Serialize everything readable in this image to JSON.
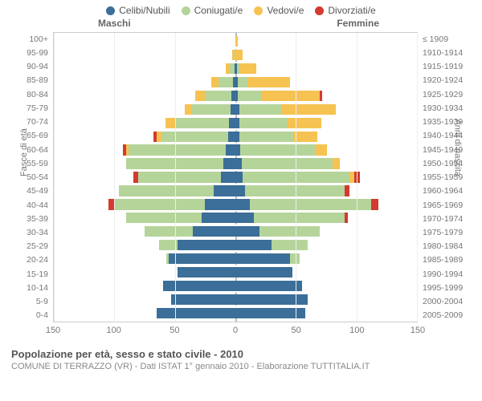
{
  "legend": [
    {
      "label": "Celibi/Nubili",
      "color": "#3b6e98"
    },
    {
      "label": "Coniugati/e",
      "color": "#b5d49a"
    },
    {
      "label": "Vedovi/e",
      "color": "#f6c251"
    },
    {
      "label": "Divorziati/e",
      "color": "#d43a2f"
    }
  ],
  "gender_labels": {
    "male": "Maschi",
    "female": "Femmine"
  },
  "axis_titles": {
    "left": "Fasce di età",
    "right": "Anni di nascita"
  },
  "xaxis": {
    "min": -150,
    "max": 150,
    "ticks": [
      -150,
      -100,
      -50,
      0,
      50,
      100,
      150
    ]
  },
  "colors": {
    "celibi": "#3b6e98",
    "coniugati": "#b5d49a",
    "vedovi": "#f6c251",
    "divorziati": "#d43a2f",
    "grid": "#eeeeee",
    "zero_dash": "#bbbbbb",
    "plot_border": "#cccccc",
    "tick_text": "#777777"
  },
  "title": "Popolazione per età, sesso e stato civile - 2010",
  "subtitle": "COMUNE DI TERRAZZO (VR) - Dati ISTAT 1° gennaio 2010 - Elaborazione TUTTITALIA.IT",
  "rows": [
    {
      "age": "0-4",
      "birth": "2005-2009",
      "m": {
        "cel": 65,
        "con": 0,
        "ved": 0,
        "div": 0
      },
      "f": {
        "cel": 58,
        "con": 0,
        "ved": 0,
        "div": 0
      }
    },
    {
      "age": "5-9",
      "birth": "2000-2004",
      "m": {
        "cel": 53,
        "con": 0,
        "ved": 0,
        "div": 0
      },
      "f": {
        "cel": 60,
        "con": 0,
        "ved": 0,
        "div": 0
      }
    },
    {
      "age": "10-14",
      "birth": "1995-1999",
      "m": {
        "cel": 60,
        "con": 0,
        "ved": 0,
        "div": 0
      },
      "f": {
        "cel": 55,
        "con": 0,
        "ved": 0,
        "div": 0
      }
    },
    {
      "age": "15-19",
      "birth": "1990-1994",
      "m": {
        "cel": 48,
        "con": 0,
        "ved": 0,
        "div": 0
      },
      "f": {
        "cel": 47,
        "con": 0,
        "ved": 0,
        "div": 0
      }
    },
    {
      "age": "20-24",
      "birth": "1985-1989",
      "m": {
        "cel": 55,
        "con": 2,
        "ved": 0,
        "div": 0
      },
      "f": {
        "cel": 45,
        "con": 8,
        "ved": 0,
        "div": 0
      }
    },
    {
      "age": "25-29",
      "birth": "1980-1984",
      "m": {
        "cel": 48,
        "con": 15,
        "ved": 0,
        "div": 0
      },
      "f": {
        "cel": 30,
        "con": 30,
        "ved": 0,
        "div": 0
      }
    },
    {
      "age": "30-34",
      "birth": "1975-1979",
      "m": {
        "cel": 35,
        "con": 40,
        "ved": 0,
        "div": 0
      },
      "f": {
        "cel": 20,
        "con": 50,
        "ved": 0,
        "div": 0
      }
    },
    {
      "age": "35-39",
      "birth": "1970-1974",
      "m": {
        "cel": 28,
        "con": 62,
        "ved": 0,
        "div": 0
      },
      "f": {
        "cel": 15,
        "con": 75,
        "ved": 0,
        "div": 3
      }
    },
    {
      "age": "40-44",
      "birth": "1965-1969",
      "m": {
        "cel": 25,
        "con": 75,
        "ved": 0,
        "div": 5
      },
      "f": {
        "cel": 12,
        "con": 100,
        "ved": 0,
        "div": 6
      }
    },
    {
      "age": "45-49",
      "birth": "1960-1964",
      "m": {
        "cel": 18,
        "con": 78,
        "ved": 0,
        "div": 0
      },
      "f": {
        "cel": 8,
        "con": 82,
        "ved": 0,
        "div": 4
      }
    },
    {
      "age": "50-54",
      "birth": "1955-1959",
      "m": {
        "cel": 12,
        "con": 68,
        "ved": 0,
        "div": 4
      },
      "f": {
        "cel": 6,
        "con": 88,
        "ved": 4,
        "div": 5
      }
    },
    {
      "age": "55-59",
      "birth": "1950-1954",
      "m": {
        "cel": 10,
        "con": 80,
        "ved": 0,
        "div": 0
      },
      "f": {
        "cel": 5,
        "con": 75,
        "ved": 6,
        "div": 0
      }
    },
    {
      "age": "60-64",
      "birth": "1945-1949",
      "m": {
        "cel": 8,
        "con": 80,
        "ved": 2,
        "div": 3
      },
      "f": {
        "cel": 4,
        "con": 62,
        "ved": 10,
        "div": 0
      }
    },
    {
      "age": "65-69",
      "birth": "1940-1944",
      "m": {
        "cel": 6,
        "con": 55,
        "ved": 4,
        "div": 3
      },
      "f": {
        "cel": 3,
        "con": 45,
        "ved": 20,
        "div": 0
      }
    },
    {
      "age": "70-74",
      "birth": "1935-1939",
      "m": {
        "cel": 5,
        "con": 45,
        "ved": 8,
        "div": 0
      },
      "f": {
        "cel": 3,
        "con": 40,
        "ved": 28,
        "div": 0
      }
    },
    {
      "age": "75-79",
      "birth": "1930-1934",
      "m": {
        "cel": 4,
        "con": 32,
        "ved": 6,
        "div": 0
      },
      "f": {
        "cel": 3,
        "con": 35,
        "ved": 45,
        "div": 0
      }
    },
    {
      "age": "80-84",
      "birth": "1925-1929",
      "m": {
        "cel": 3,
        "con": 22,
        "ved": 8,
        "div": 0
      },
      "f": {
        "cel": 2,
        "con": 20,
        "ved": 48,
        "div": 2
      }
    },
    {
      "age": "85-89",
      "birth": "1920-1924",
      "m": {
        "cel": 2,
        "con": 12,
        "ved": 6,
        "div": 0
      },
      "f": {
        "cel": 2,
        "con": 8,
        "ved": 35,
        "div": 0
      }
    },
    {
      "age": "90-94",
      "birth": "1915-1919",
      "m": {
        "cel": 1,
        "con": 4,
        "ved": 3,
        "div": 0
      },
      "f": {
        "cel": 1,
        "con": 2,
        "ved": 14,
        "div": 0
      }
    },
    {
      "age": "95-99",
      "birth": "1910-1914",
      "m": {
        "cel": 0,
        "con": 1,
        "ved": 2,
        "div": 0
      },
      "f": {
        "cel": 0,
        "con": 0,
        "ved": 6,
        "div": 0
      }
    },
    {
      "age": "100+",
      "birth": "≤ 1909",
      "m": {
        "cel": 0,
        "con": 0,
        "ved": 0,
        "div": 0
      },
      "f": {
        "cel": 0,
        "con": 0,
        "ved": 2,
        "div": 0
      }
    }
  ],
  "typography": {
    "tick_fontsize_pt": 8,
    "legend_fontsize_pt": 9,
    "title_fontsize_pt": 10,
    "subtitle_fontsize_pt": 8
  },
  "chart_type": "population-pyramid"
}
